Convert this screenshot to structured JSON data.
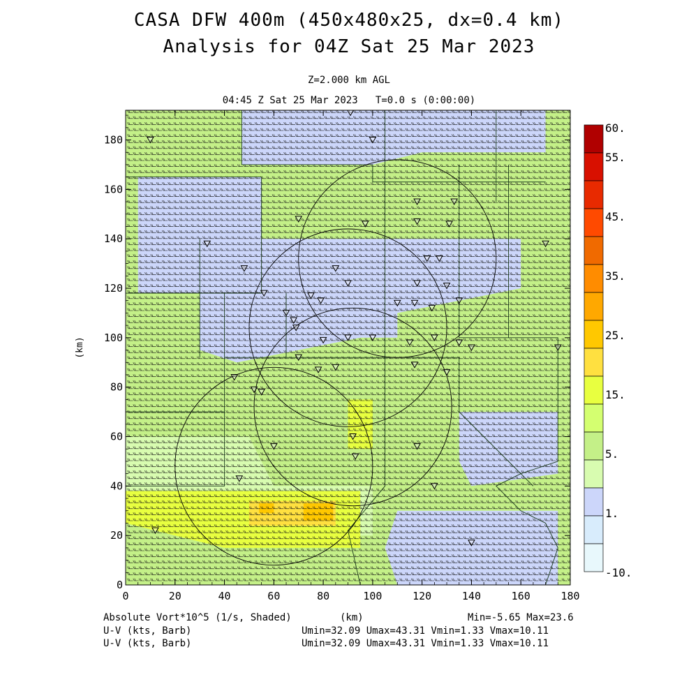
{
  "header": {
    "title_line1": "CASA DFW 400m (450x480x25, dx=0.4 km)",
    "title_line2": "Analysis for 04Z Sat 25 Mar 2023",
    "level": "Z=2.000 km AGL",
    "valid_time": "04:45 Z Sat 25 Mar 2023   T=0.0 s (0:00:00)"
  },
  "axes": {
    "x_label": "(km)",
    "y_label": "(km)",
    "x_ticks": [
      "0",
      "20",
      "40",
      "60",
      "80",
      "100",
      "120",
      "140",
      "160",
      "180"
    ],
    "y_ticks": [
      "0",
      "20",
      "40",
      "60",
      "80",
      "100",
      "120",
      "140",
      "160",
      "180"
    ],
    "x_range_km": [
      0,
      180
    ],
    "y_range_km": [
      0,
      192
    ]
  },
  "colorbar": {
    "labels": [
      "60.",
      "55.",
      "45.",
      "35.",
      "25.",
      "15.",
      "5.",
      "1.",
      "-10."
    ],
    "colors": [
      "#b00000",
      "#d81000",
      "#e82a00",
      "#ff4a00",
      "#f06a00",
      "#ff8c00",
      "#ffa800",
      "#ffc800",
      "#ffe040",
      "#e8ff40",
      "#d4ff70",
      "#c4f088",
      "#d8fcb0",
      "#ccd6fa",
      "#d8ecfc",
      "#e8f8fc"
    ]
  },
  "footer": {
    "field_label": "Absolute Vort*10^5 (1/s, Shaded)",
    "minmax": "Min=-5.65 Max=23.6",
    "vector1_label": "U-V (kts, Barb)",
    "vector1_stats": "Umin=32.09 Umax=43.31 Vmin=1.33 Vmax=10.11",
    "vector2_label": "U-V (kts, Barb)",
    "vector2_stats": "Umin=32.09 Umax=43.31 Vmin=1.33 Vmax=10.11",
    "x_unit": "(km)"
  },
  "map": {
    "radar_range_rings": [
      {
        "center_km": [
          60,
          48
        ],
        "radius_km": 40
      },
      {
        "center_km": [
          92,
          72
        ],
        "radius_km": 40
      },
      {
        "center_km": [
          90,
          104
        ],
        "radius_km": 40
      },
      {
        "center_km": [
          110,
          132
        ],
        "radius_km": 40
      }
    ],
    "shading": {
      "background": "#c4f088",
      "regions": [
        {
          "color": "#ccd6fa",
          "points_km": [
            [
              47,
              192
            ],
            [
              170,
              192
            ],
            [
              170,
              175
            ],
            [
              120,
              175
            ],
            [
              100,
              170
            ],
            [
              47,
              170
            ]
          ]
        },
        {
          "color": "#ccd6fa",
          "points_km": [
            [
              5,
              165
            ],
            [
              55,
              165
            ],
            [
              55,
              118
            ],
            [
              5,
              118
            ]
          ]
        },
        {
          "color": "#ccd6fa",
          "points_km": [
            [
              30,
              140
            ],
            [
              160,
              140
            ],
            [
              160,
              120
            ],
            [
              110,
              110
            ],
            [
              95,
              100
            ],
            [
              70,
              95
            ],
            [
              45,
              90
            ],
            [
              30,
              95
            ]
          ]
        },
        {
          "color": "#ccd6fa",
          "points_km": [
            [
              75,
              125
            ],
            [
              110,
              125
            ],
            [
              110,
              100
            ],
            [
              75,
              100
            ]
          ]
        },
        {
          "color": "#ccd6fa",
          "points_km": [
            [
              135,
              70
            ],
            [
              175,
              70
            ],
            [
              175,
              45
            ],
            [
              140,
              40
            ],
            [
              135,
              50
            ]
          ]
        },
        {
          "color": "#ccd6fa",
          "points_km": [
            [
              110,
              30
            ],
            [
              175,
              30
            ],
            [
              175,
              0
            ],
            [
              110,
              0
            ],
            [
              105,
              15
            ]
          ]
        },
        {
          "color": "#d8fcb0",
          "points_km": [
            [
              0,
              60
            ],
            [
              50,
              60
            ],
            [
              60,
              40
            ],
            [
              100,
              40
            ],
            [
              100,
              20
            ],
            [
              20,
              20
            ],
            [
              0,
              30
            ]
          ]
        },
        {
          "color": "#e8ff40",
          "points_km": [
            [
              0,
              38
            ],
            [
              95,
              38
            ],
            [
              95,
              15
            ],
            [
              40,
              15
            ],
            [
              0,
              25
            ]
          ]
        },
        {
          "color": "#ffe040",
          "points_km": [
            [
              50,
              34
            ],
            [
              85,
              34
            ],
            [
              85,
              24
            ],
            [
              50,
              24
            ]
          ]
        },
        {
          "color": "#ffc800",
          "points_km": [
            [
              72,
              33
            ],
            [
              84,
              33
            ],
            [
              84,
              26
            ],
            [
              72,
              26
            ]
          ]
        },
        {
          "color": "#ffc800",
          "points_km": [
            [
              54,
              33
            ],
            [
              60,
              33
            ],
            [
              60,
              29
            ],
            [
              54,
              29
            ]
          ]
        },
        {
          "color": "#e8ff40",
          "points_km": [
            [
              90,
              75
            ],
            [
              100,
              75
            ],
            [
              100,
              55
            ],
            [
              90,
              55
            ]
          ]
        }
      ]
    },
    "county_lines": [
      [
        [
          0,
          165
        ],
        [
          55,
          165
        ],
        [
          55,
          118
        ],
        [
          0,
          118
        ]
      ],
      [
        [
          47,
          192
        ],
        [
          47,
          170
        ],
        [
          100,
          170
        ],
        [
          100,
          163
        ],
        [
          170,
          163
        ]
      ],
      [
        [
          55,
          118
        ],
        [
          40,
          118
        ],
        [
          40,
          70
        ],
        [
          0,
          70
        ]
      ],
      [
        [
          40,
          70
        ],
        [
          40,
          40
        ],
        [
          0,
          40
        ]
      ],
      [
        [
          40,
          92
        ],
        [
          135,
          92
        ],
        [
          135,
          70
        ]
      ],
      [
        [
          105,
          192
        ],
        [
          105,
          40
        ],
        [
          90,
          22
        ],
        [
          95,
          0
        ]
      ],
      [
        [
          135,
          170
        ],
        [
          135,
          100
        ],
        [
          155,
          100
        ],
        [
          155,
          170
        ]
      ],
      [
        [
          155,
          100
        ],
        [
          175,
          100
        ],
        [
          175,
          50
        ],
        [
          160,
          45
        ],
        [
          150,
          40
        ],
        [
          160,
          30
        ],
        [
          170,
          25
        ],
        [
          175,
          15
        ],
        [
          170,
          0
        ]
      ],
      [
        [
          135,
          70
        ],
        [
          145,
          60
        ],
        [
          155,
          50
        ],
        [
          165,
          40
        ]
      ],
      [
        [
          30,
          140
        ],
        [
          30,
          92
        ]
      ],
      [
        [
          65,
          118
        ],
        [
          65,
          92
        ]
      ],
      [
        [
          150,
          192
        ],
        [
          150,
          155
        ]
      ]
    ],
    "radar_sites_km": [
      [
        10,
        180
      ],
      [
        91,
        191
      ],
      [
        100,
        180
      ],
      [
        118,
        155
      ],
      [
        133,
        155
      ],
      [
        70,
        148
      ],
      [
        97,
        146
      ],
      [
        118,
        147
      ],
      [
        131,
        146
      ],
      [
        33,
        138
      ],
      [
        170,
        138
      ],
      [
        48,
        128
      ],
      [
        85,
        128
      ],
      [
        122,
        132
      ],
      [
        127,
        132
      ],
      [
        90,
        122
      ],
      [
        118,
        122
      ],
      [
        130,
        121
      ],
      [
        75,
        117
      ],
      [
        56,
        118
      ],
      [
        79,
        115
      ],
      [
        110,
        114
      ],
      [
        117,
        114
      ],
      [
        124,
        112
      ],
      [
        135,
        115
      ],
      [
        65,
        110
      ],
      [
        68,
        107
      ],
      [
        69,
        104
      ],
      [
        80,
        99
      ],
      [
        90,
        100
      ],
      [
        115,
        98
      ],
      [
        100,
        100
      ],
      [
        125,
        100
      ],
      [
        135,
        98
      ],
      [
        140,
        96
      ],
      [
        175,
        96
      ],
      [
        70,
        92
      ],
      [
        78,
        87
      ],
      [
        85,
        88
      ],
      [
        117,
        89
      ],
      [
        130,
        86
      ],
      [
        52,
        79
      ],
      [
        55,
        78
      ],
      [
        44,
        84
      ],
      [
        92,
        60
      ],
      [
        118,
        56
      ],
      [
        60,
        56
      ],
      [
        46,
        43
      ],
      [
        93,
        52
      ],
      [
        125,
        40
      ],
      [
        12,
        22
      ],
      [
        140,
        17
      ]
    ]
  }
}
